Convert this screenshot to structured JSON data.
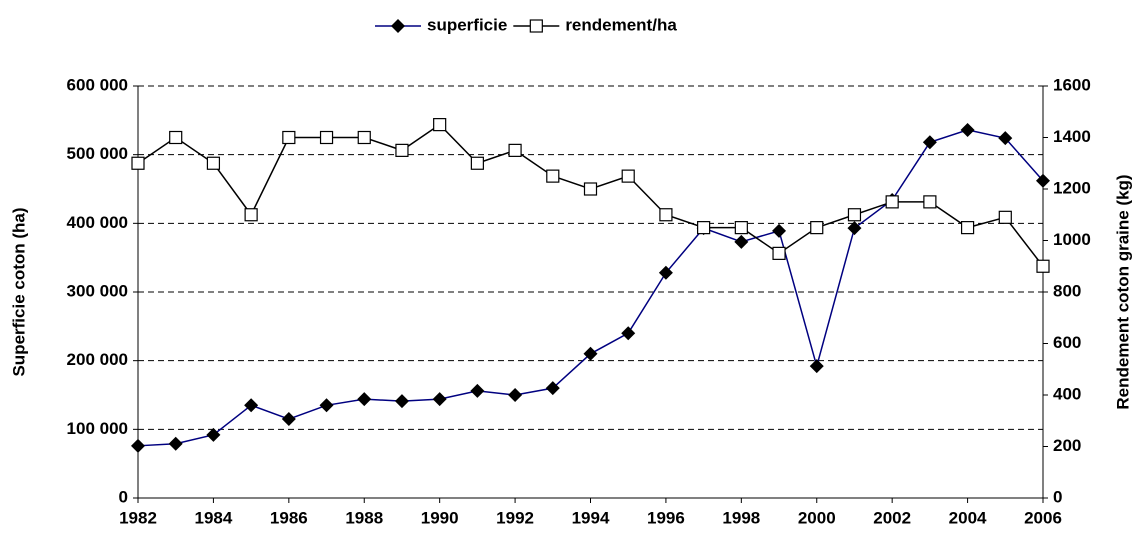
{
  "chart_data": {
    "type": "line",
    "x": [
      1982,
      1983,
      1984,
      1985,
      1986,
      1987,
      1988,
      1989,
      1990,
      1991,
      1992,
      1993,
      1994,
      1995,
      1996,
      1997,
      1998,
      1999,
      2000,
      2001,
      2002,
      2003,
      2004,
      2005,
      2006
    ],
    "series": [
      {
        "name": "superficie",
        "color": "#000080",
        "values": [
          76000,
          79000,
          92000,
          135000,
          115000,
          135000,
          144000,
          141000,
          144000,
          156000,
          150000,
          160000,
          210000,
          240000,
          328000,
          393000,
          373000,
          389000,
          192000,
          393000,
          434000,
          518000,
          536000,
          524000,
          462000
        ]
      },
      {
        "name": "rendement/ha",
        "color": "#000000",
        "axis": "y2",
        "values": [
          1300,
          1400,
          1300,
          1100,
          1400,
          1400,
          1400,
          1350,
          1450,
          1300,
          1350,
          1250,
          1200,
          1250,
          1100,
          1050,
          1050,
          950,
          1050,
          1100,
          1150,
          1150,
          1050,
          1090,
          900
        ]
      }
    ],
    "ylabel": "Superficie coton (ha)",
    "y2label": "Rendement coton graine (kg)",
    "xlim": [
      1982,
      2006
    ],
    "xticks": [
      1982,
      1984,
      1986,
      1988,
      1990,
      1992,
      1994,
      1996,
      1998,
      2000,
      2002,
      2004,
      2006
    ],
    "ylim": [
      0,
      600000
    ],
    "yticks": [
      0,
      {
        "value": 100000,
        "label": "100 000"
      },
      {
        "value": 200000,
        "label": "200 000"
      },
      {
        "value": 300000,
        "label": "300 000"
      },
      {
        "value": 400000,
        "label": "400 000"
      },
      {
        "value": 500000,
        "label": "500 000"
      },
      {
        "value": 600000,
        "label": "600 000"
      }
    ],
    "y2lim": [
      0,
      1600
    ],
    "y2ticks": [
      0,
      200,
      400,
      600,
      800,
      1000,
      1200,
      1400,
      1600
    ],
    "grid": true,
    "legend": "top"
  }
}
